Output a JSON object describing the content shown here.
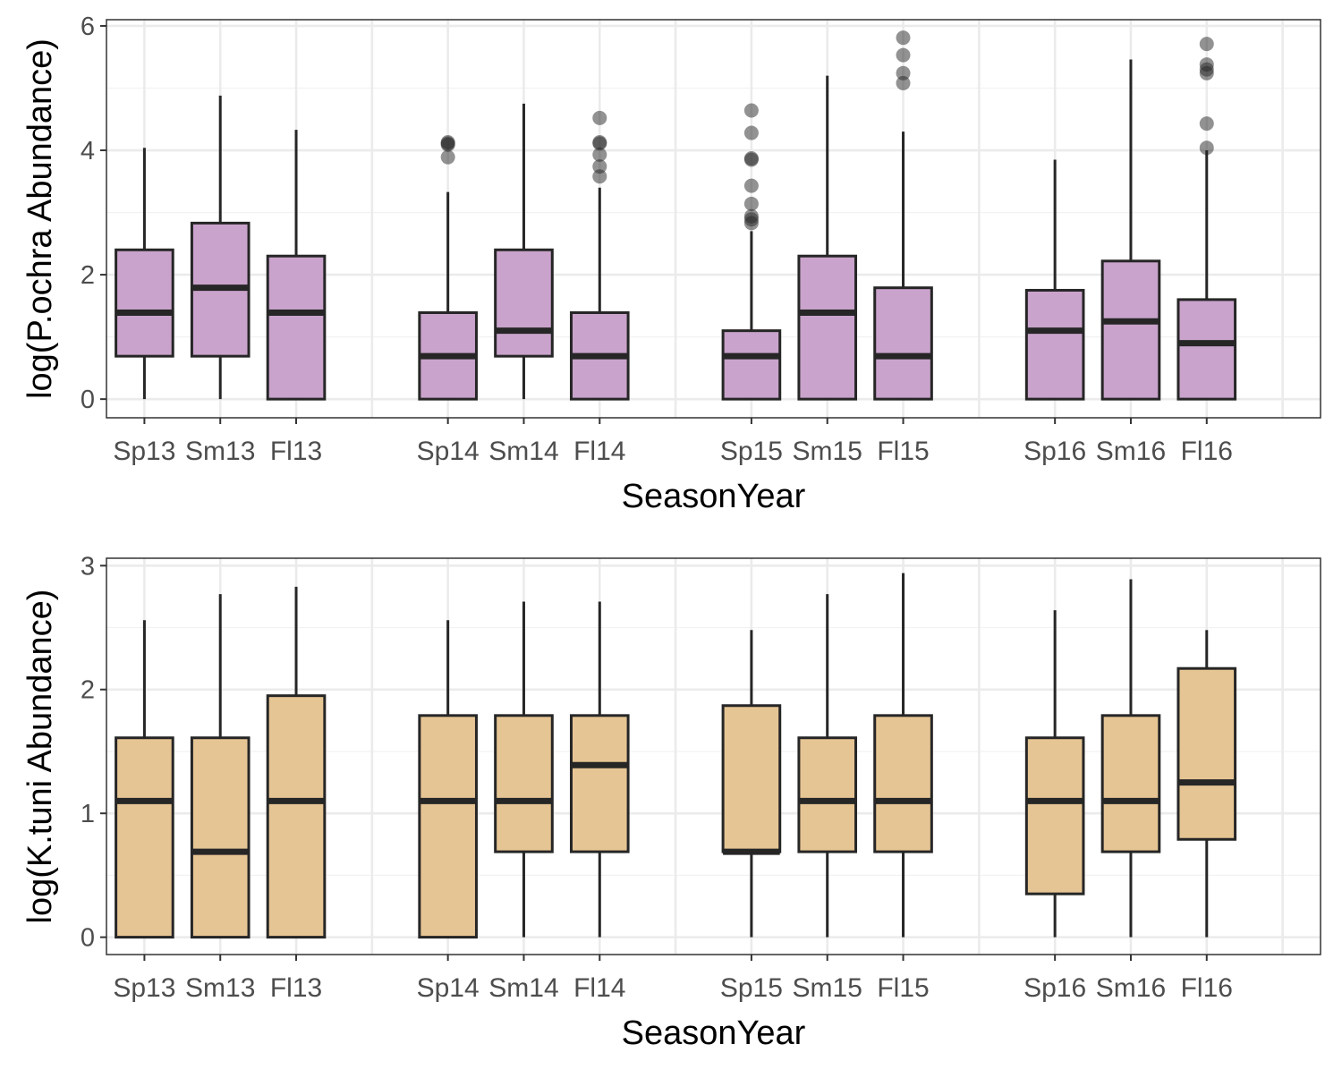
{
  "chart_data": [
    {
      "type": "box",
      "title": "",
      "xlabel": "SeasonYear",
      "ylabel": "log(P.ochra Abundance)",
      "ylim": [
        -0.3,
        6.1
      ],
      "yticks": [
        0,
        2,
        4,
        6
      ],
      "grid": true,
      "fill": "#c9a3cb",
      "categories": [
        "Sp13",
        "Sm13",
        "Fl13",
        "Sp14",
        "Sm14",
        "Fl14",
        "Sp15",
        "Sm15",
        "Fl15",
        "Sp16",
        "Sm16",
        "Fl16"
      ],
      "category_slots": [
        1,
        2,
        3,
        5,
        6,
        7,
        9,
        10,
        11,
        13,
        14,
        15
      ],
      "slot_count": 16,
      "boxes": [
        {
          "min": 0.0,
          "q1": 0.69,
          "median": 1.39,
          "q3": 2.4,
          "max": 4.04,
          "outliers": []
        },
        {
          "min": 0.0,
          "q1": 0.69,
          "median": 1.79,
          "q3": 2.83,
          "max": 4.88,
          "outliers": []
        },
        {
          "min": 0.0,
          "q1": 0.0,
          "median": 1.39,
          "q3": 2.3,
          "max": 4.33,
          "outliers": []
        },
        {
          "min": 0.0,
          "q1": 0.0,
          "median": 0.69,
          "q3": 1.39,
          "max": 3.33,
          "outliers": [
            3.89,
            4.09,
            4.11,
            4.13
          ]
        },
        {
          "min": 0.0,
          "q1": 0.69,
          "median": 1.1,
          "q3": 2.4,
          "max": 4.75,
          "outliers": []
        },
        {
          "min": 0.0,
          "q1": 0.0,
          "median": 0.69,
          "q3": 1.39,
          "max": 3.4,
          "outliers": [
            3.58,
            3.74,
            3.93,
            4.11,
            4.13,
            4.52
          ]
        },
        {
          "min": 0.0,
          "q1": 0.0,
          "median": 0.69,
          "q3": 1.1,
          "max": 2.7,
          "outliers": [
            2.83,
            2.89,
            2.94,
            3.14,
            3.43,
            3.85,
            3.87,
            4.28,
            4.64
          ]
        },
        {
          "min": 0.0,
          "q1": 0.0,
          "median": 1.39,
          "q3": 2.3,
          "max": 5.2,
          "outliers": []
        },
        {
          "min": 0.0,
          "q1": 0.0,
          "median": 0.69,
          "q3": 1.79,
          "max": 4.3,
          "outliers": [
            5.08,
            5.24,
            5.53,
            5.81
          ]
        },
        {
          "min": 0.0,
          "q1": 0.0,
          "median": 1.1,
          "q3": 1.75,
          "max": 3.85,
          "outliers": []
        },
        {
          "min": 0.0,
          "q1": 0.0,
          "median": 1.25,
          "q3": 2.22,
          "max": 5.46,
          "outliers": []
        },
        {
          "min": 0.0,
          "q1": 0.0,
          "median": 0.9,
          "q3": 1.6,
          "max": 4.0,
          "outliers": [
            4.04,
            4.43,
            5.24,
            5.3,
            5.38,
            5.71
          ]
        }
      ]
    },
    {
      "type": "box",
      "title": "",
      "xlabel": "SeasonYear",
      "ylabel": "log(K.tuni Abundance)",
      "ylim": [
        -0.14,
        3.06
      ],
      "yticks": [
        0,
        1,
        2,
        3
      ],
      "grid": true,
      "fill": "#e6c594",
      "categories": [
        "Sp13",
        "Sm13",
        "Fl13",
        "Sp14",
        "Sm14",
        "Fl14",
        "Sp15",
        "Sm15",
        "Fl15",
        "Sp16",
        "Sm16",
        "Fl16"
      ],
      "category_slots": [
        1,
        2,
        3,
        5,
        6,
        7,
        9,
        10,
        11,
        13,
        14,
        15
      ],
      "slot_count": 16,
      "boxes": [
        {
          "min": 0.0,
          "q1": 0.0,
          "median": 1.1,
          "q3": 1.61,
          "max": 2.56,
          "outliers": []
        },
        {
          "min": 0.0,
          "q1": 0.0,
          "median": 0.69,
          "q3": 1.61,
          "max": 2.77,
          "outliers": []
        },
        {
          "min": 0.0,
          "q1": 0.0,
          "median": 1.1,
          "q3": 1.95,
          "max": 2.83,
          "outliers": []
        },
        {
          "min": 0.0,
          "q1": 0.0,
          "median": 1.1,
          "q3": 1.79,
          "max": 2.56,
          "outliers": []
        },
        {
          "min": 0.0,
          "q1": 0.69,
          "median": 1.1,
          "q3": 1.79,
          "max": 2.71,
          "outliers": []
        },
        {
          "min": 0.0,
          "q1": 0.69,
          "median": 1.39,
          "q3": 1.79,
          "max": 2.71,
          "outliers": []
        },
        {
          "min": 0.0,
          "q1": 0.69,
          "median": 0.69,
          "q3": 1.87,
          "max": 2.48,
          "outliers": []
        },
        {
          "min": 0.0,
          "q1": 0.69,
          "median": 1.1,
          "q3": 1.61,
          "max": 2.77,
          "outliers": []
        },
        {
          "min": 0.0,
          "q1": 0.69,
          "median": 1.1,
          "q3": 1.79,
          "max": 2.94,
          "outliers": []
        },
        {
          "min": 0.0,
          "q1": 0.35,
          "median": 1.1,
          "q3": 1.61,
          "max": 2.64,
          "outliers": []
        },
        {
          "min": 0.0,
          "q1": 0.69,
          "median": 1.1,
          "q3": 1.79,
          "max": 2.89,
          "outliers": []
        },
        {
          "min": 0.0,
          "q1": 0.79,
          "median": 1.25,
          "q3": 2.17,
          "max": 2.48,
          "outliers": []
        }
      ]
    }
  ]
}
